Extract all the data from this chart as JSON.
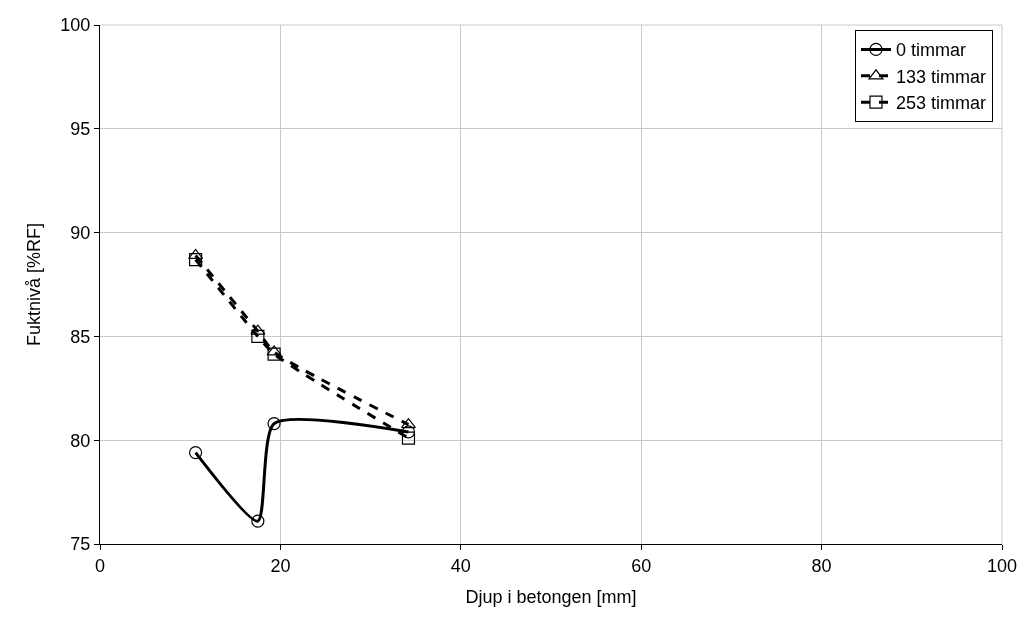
{
  "chart_data": {
    "type": "line",
    "xlabel": "Djup i betongen [mm]",
    "ylabel": "Fuktnivå [%RF]",
    "x": [
      10.6,
      17.5,
      19.3,
      34.2
    ],
    "series": [
      {
        "name": "0 timmar",
        "color": "#000000",
        "values": [
          79.4,
          76.1,
          80.8,
          80.4
        ],
        "marker": "circle",
        "line_style": "solid"
      },
      {
        "name": "133 timmar",
        "color": "#000000",
        "values": [
          88.9,
          85.25,
          84.25,
          80.75
        ],
        "marker": "triangle",
        "line_style": "dashed"
      },
      {
        "name": "253 timmar",
        "color": "#000000",
        "values": [
          88.7,
          85.0,
          84.15,
          80.1
        ],
        "marker": "square",
        "line_style": "dashed"
      }
    ],
    "xlim": [
      0,
      100
    ],
    "xticks": [
      0,
      20,
      40,
      60,
      80,
      100
    ],
    "ylim": [
      75,
      100
    ],
    "yticks": [
      75,
      80,
      85,
      90,
      95,
      100
    ],
    "grid": true,
    "legend": "top right"
  }
}
